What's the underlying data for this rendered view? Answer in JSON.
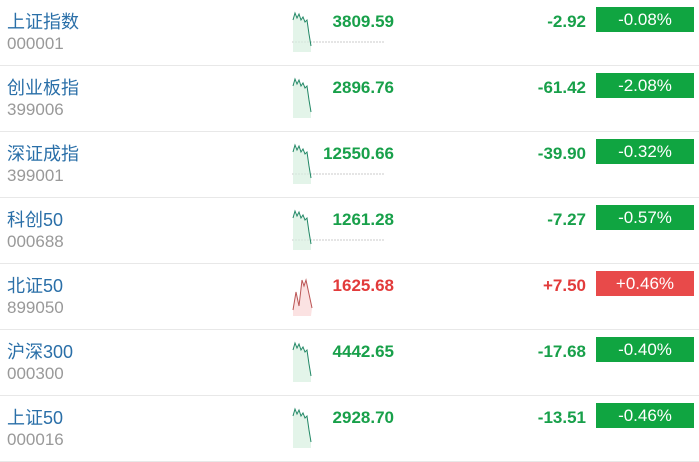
{
  "colors": {
    "down": "#18a04a",
    "up": "#e23b3b",
    "down_badge": "#10a541",
    "up_badge": "#e84a4a"
  },
  "rows": [
    {
      "name": "上证指数",
      "code": "000001",
      "price": "3809.59",
      "change": "-2.92",
      "pct": "-0.08%",
      "dir": "down",
      "baseline": true
    },
    {
      "name": "创业板指",
      "code": "399006",
      "price": "2896.76",
      "change": "-61.42",
      "pct": "-2.08%",
      "dir": "down",
      "baseline": false
    },
    {
      "name": "深证成指",
      "code": "399001",
      "price": "12550.66",
      "change": "-39.90",
      "pct": "-0.32%",
      "dir": "down",
      "baseline": true
    },
    {
      "name": "科创50",
      "code": "000688",
      "price": "1261.28",
      "change": "-7.27",
      "pct": "-0.57%",
      "dir": "down",
      "baseline": true
    },
    {
      "name": "北证50",
      "code": "899050",
      "price": "1625.68",
      "change": "+7.50",
      "pct": "+0.46%",
      "dir": "up",
      "baseline": false
    },
    {
      "name": "沪深300",
      "code": "000300",
      "price": "4442.65",
      "change": "-17.68",
      "pct": "-0.40%",
      "dir": "down",
      "baseline": false
    },
    {
      "name": "上证50",
      "code": "000016",
      "price": "2928.70",
      "change": "-13.51",
      "pct": "-0.46%",
      "dir": "down",
      "baseline": false
    }
  ]
}
